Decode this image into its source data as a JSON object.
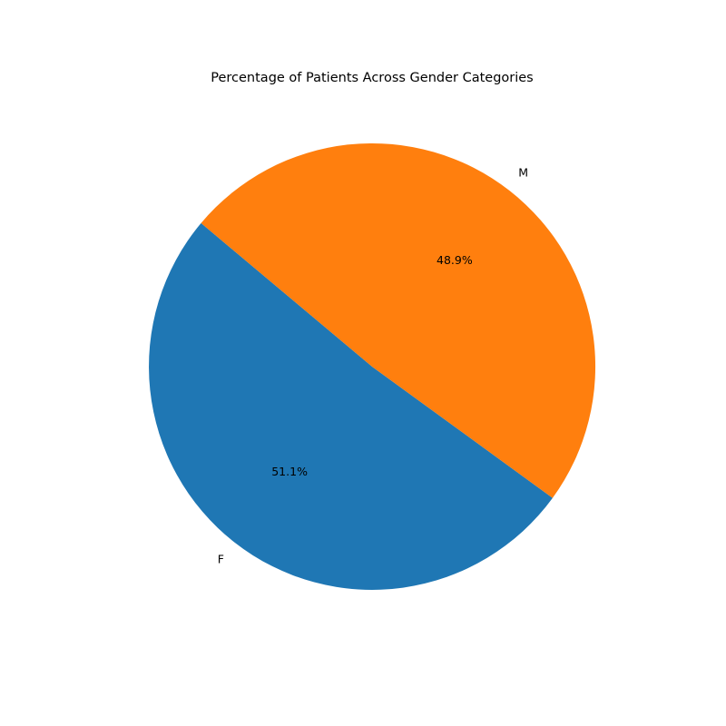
{
  "chart_data": {
    "type": "pie",
    "title": "Percentage of Patients Across Gender Categories",
    "categories": [
      "F",
      "M"
    ],
    "values": [
      51.1,
      48.9
    ],
    "percent_labels": [
      "51.1%",
      "48.9%"
    ],
    "colors": [
      "#1f77b4",
      "#ff7f0e"
    ],
    "start_angle_deg": 140,
    "direction": "counterclockwise"
  }
}
